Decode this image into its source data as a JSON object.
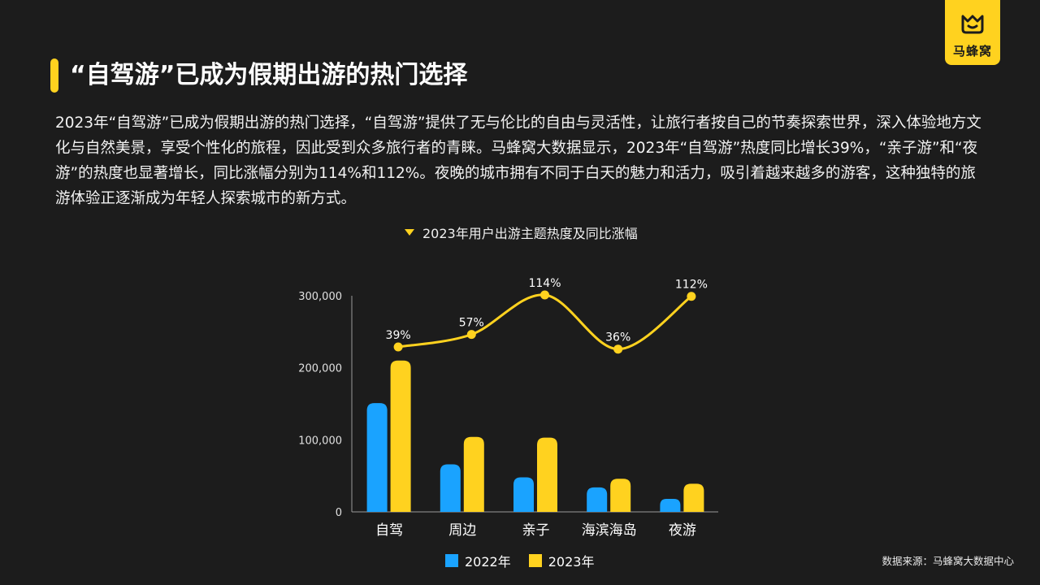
{
  "header": {
    "title": "“自驾游”已成为假期出游的热门选择",
    "body": "2023年“自驾游”已成为假期出游的热门选择，“自驾游”提供了无与伦比的自由与灵活性，让旅行者按自己的节奏探索世界，深入体验地方文化与自然美景，享受个性化的旅程，因此受到众多旅行者的青睐。马蜂窝大数据显示，2023年“自驾游”热度同比增长39%，“亲子游”和“夜游”的热度也显著增长，同比涨幅分别为114%和112%。夜晚的城市拥有不同于白天的魅力和活力，吸引着越来越多的游客，这种独特的旅游体验正逐渐成为年轻人探索城市的新方式。"
  },
  "logo": {
    "text": "马蜂窝",
    "icon": "mafengwo-logo-icon"
  },
  "source": "数据来源：马蜂窝大数据中心",
  "colors": {
    "accent": "#ffd21f",
    "blue": "#1aa3ff",
    "background": "#1c1c1c"
  },
  "chart_data": {
    "type": "bar",
    "title": "2023年用户出游主题热度及同比涨幅",
    "categories": [
      "自驾",
      "周边",
      "亲子",
      "海滨海岛",
      "夜游"
    ],
    "series": [
      {
        "name": "2022年",
        "values": [
          151000,
          66000,
          48000,
          34000,
          18000
        ],
        "color": "#1aa3ff"
      },
      {
        "name": "2023年",
        "values": [
          210000,
          104000,
          103000,
          46000,
          39000
        ],
        "color": "#ffd21f"
      }
    ],
    "growth": {
      "type": "line",
      "labels": [
        "39%",
        "57%",
        "114%",
        "36%",
        "112%"
      ],
      "values": [
        39,
        57,
        114,
        36,
        112
      ],
      "color": "#ffd21f"
    },
    "yticks": [
      "0",
      "100,000",
      "200,000",
      "300,000"
    ],
    "ylim": [
      0,
      300000
    ],
    "legend": "bottom"
  }
}
